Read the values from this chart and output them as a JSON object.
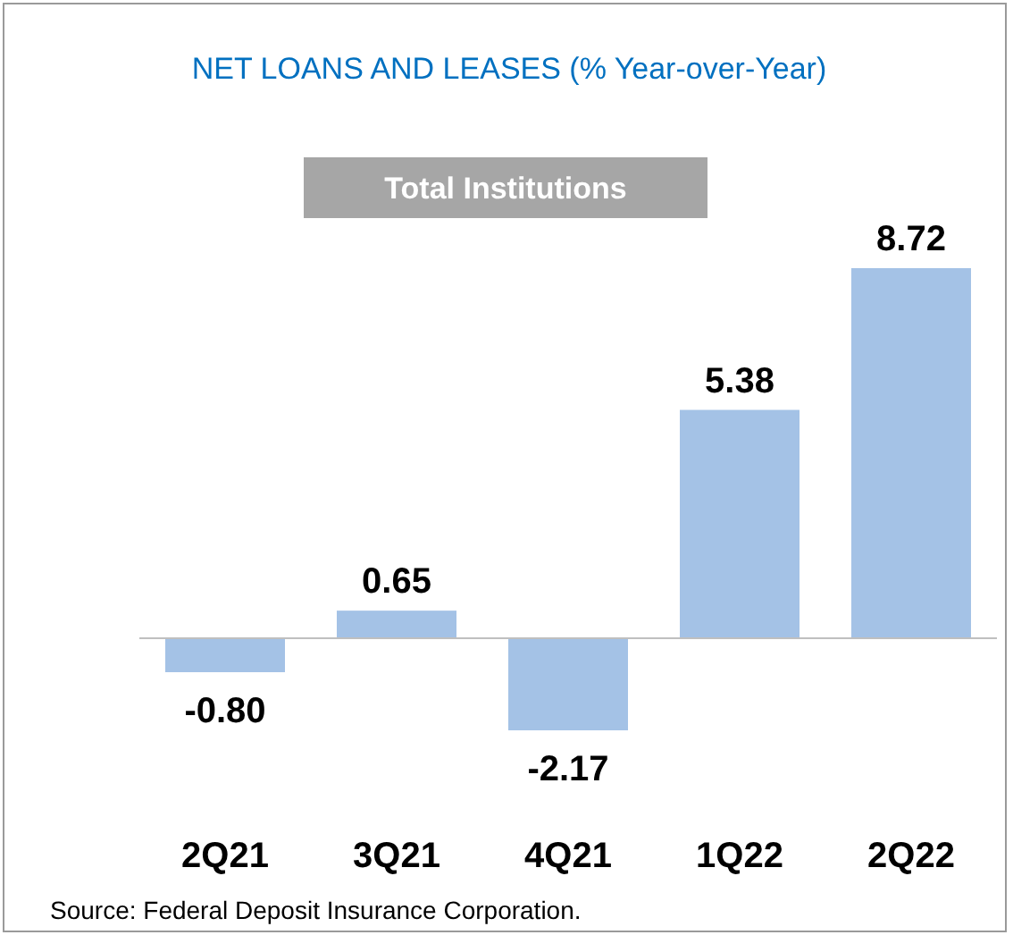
{
  "chart_data": {
    "type": "bar",
    "title": "NET LOANS AND LEASES (% Year-over-Year)",
    "subtitle": "Total Institutions",
    "categories": [
      "2Q21",
      "3Q21",
      "4Q21",
      "1Q22",
      "2Q22"
    ],
    "values": [
      -0.8,
      0.65,
      -2.17,
      5.38,
      8.72
    ],
    "value_labels": [
      "-0.80",
      "0.65",
      "-2.17",
      "5.38",
      "8.72"
    ],
    "color": "#a4c2e6",
    "relative": false,
    "annotations": [
      "Source: Federal Deposit Insurance Corporation."
    ]
  }
}
